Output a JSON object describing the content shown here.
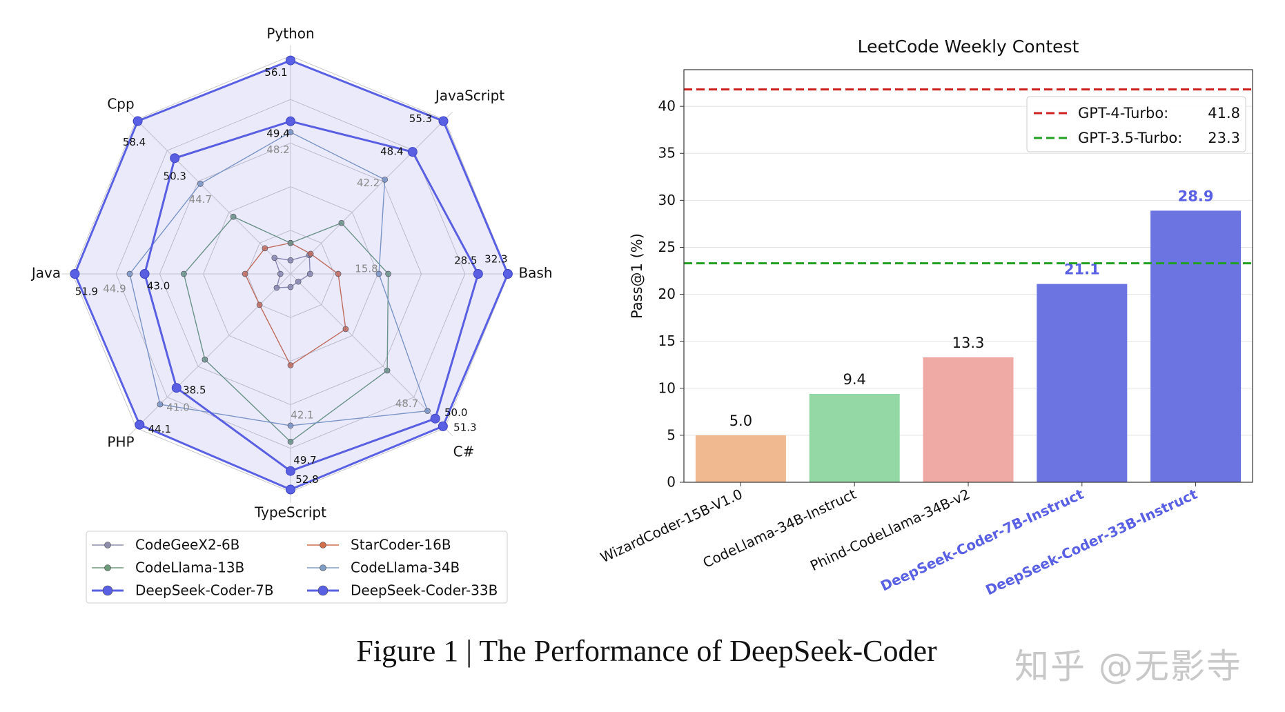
{
  "caption": "Figure 1 | The Performance of DeepSeek-Coder",
  "watermark": "知乎 @无影寺",
  "chart_data": [
    {
      "type": "radar",
      "axes": [
        "Python",
        "JavaScript",
        "Bash",
        "C#",
        "TypeScript",
        "PHP",
        "Java",
        "Cpp"
      ],
      "axis_ranges": [
        [
          32.6,
          56.6
        ],
        [
          21.1,
          55.6
        ],
        [
          4.5,
          32.4
        ],
        [
          25.6,
          51.6
        ],
        [
          16.7,
          53.2
        ],
        [
          21.2,
          44.6
        ],
        [
          24.4,
          52.2
        ],
        [
          25.0,
          58.7
        ]
      ],
      "legend_placement": "bottom",
      "series": [
        {
          "name": "CodeGeeX2-6B",
          "color": "#8e8eaa",
          "values": [
            34.1,
            25.3,
            7.0,
            26.9,
            18.9,
            23.3,
            25.7,
            28.5
          ],
          "labeled": false
        },
        {
          "name": "StarCoder-16B",
          "color": "#cf6f4c",
          "values": [
            36.0,
            25.6,
            10.6,
            34.9,
            32.0,
            25.9,
            30.2,
            30.6
          ],
          "labeled": false
        },
        {
          "name": "CodeLlama-13B",
          "color": "#6e9a7c",
          "values": [
            36.0,
            32.5,
            17.0,
            41.9,
            44.8,
            34.2,
            38.0,
            37.5
          ],
          "labeled": false
        },
        {
          "name": "CodeLlama-34B",
          "color": "#7f9dc2",
          "values": [
            48.2,
            42.2,
            15.8,
            48.7,
            42.1,
            41.0,
            44.9,
            44.7
          ],
          "labeled": true,
          "label_color": "#8a8a8a"
        },
        {
          "name": "DeepSeek-Coder-7B",
          "color": "#5a60e3",
          "values": [
            49.4,
            48.4,
            28.5,
            50.0,
            49.7,
            38.5,
            43.0,
            50.3
          ],
          "labeled": true,
          "label_color": "#111111"
        },
        {
          "name": "DeepSeek-Coder-33B",
          "color": "#5a60e3",
          "values": [
            56.1,
            55.3,
            32.3,
            51.3,
            52.8,
            44.1,
            51.9,
            58.4
          ],
          "labeled": true,
          "label_color": "#111111",
          "filled": true
        }
      ],
      "legend_order": [
        0,
        1,
        2,
        3,
        4,
        5
      ]
    },
    {
      "type": "bar",
      "title": "LeetCode Weekly Contest",
      "ylabel": "Pass@1 (%)",
      "xlabel": "",
      "ylim": [
        0,
        43.9
      ],
      "yticks": [
        0,
        5,
        10,
        15,
        20,
        25,
        30,
        35,
        40
      ],
      "grid": true,
      "categories": [
        "WizardCoder-15B-V1.0",
        "CodeLlama-34B-Instruct",
        "Phind-CodeLlama-34B-v2",
        "DeepSeek-Coder-7B-Instruct",
        "DeepSeek-Coder-33B-Instruct"
      ],
      "values": [
        5.0,
        9.4,
        13.3,
        21.1,
        28.9
      ],
      "value_labels": [
        "5.0",
        "9.4",
        "13.3",
        "21.1",
        "28.9"
      ],
      "bar_colors": [
        "#f0b98f",
        "#94d9a5",
        "#f0aaa6",
        "#6c74e2",
        "#6c74e2"
      ],
      "highlighted": [
        false,
        false,
        false,
        true,
        true
      ],
      "highlight_color": "#5a60e3",
      "reference_lines": [
        {
          "name": "GPT-4-Turbo:",
          "value": 41.8,
          "value_label": "41.8",
          "color": "#cc1f1f",
          "style": "dashed"
        },
        {
          "name": "GPT-3.5-Turbo:",
          "value": 23.3,
          "value_label": "23.3",
          "color": "#22a022",
          "style": "dashed"
        }
      ],
      "legend_placement": "top-right"
    }
  ]
}
